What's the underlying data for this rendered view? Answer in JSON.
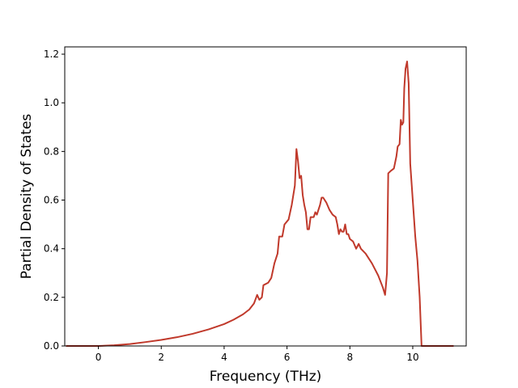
{
  "chart_data": {
    "type": "line",
    "title": "",
    "xlabel": "Frequency (THz)",
    "ylabel": "Partial Density of States",
    "xlim": [
      -1.07,
      11.7
    ],
    "ylim": [
      0.0,
      1.23
    ],
    "xticks": [
      0,
      2,
      4,
      6,
      8,
      10
    ],
    "yticks": [
      0.0,
      0.2,
      0.4,
      0.6,
      0.8,
      1.0,
      1.2
    ],
    "xtick_labels": [
      "0",
      "2",
      "4",
      "6",
      "8",
      "10"
    ],
    "ytick_labels": [
      "0.0",
      "0.2",
      "0.4",
      "0.6",
      "0.8",
      "1.0",
      "1.2"
    ],
    "grid": false,
    "series": [
      {
        "color": "#c0392b",
        "points": [
          [
            -1.03,
            0.0
          ],
          [
            0.0,
            0.0
          ],
          [
            0.5,
            0.003
          ],
          [
            1.0,
            0.008
          ],
          [
            1.5,
            0.016
          ],
          [
            2.0,
            0.025
          ],
          [
            2.5,
            0.036
          ],
          [
            3.0,
            0.05
          ],
          [
            3.5,
            0.068
          ],
          [
            4.0,
            0.09
          ],
          [
            4.3,
            0.108
          ],
          [
            4.6,
            0.13
          ],
          [
            4.8,
            0.15
          ],
          [
            4.95,
            0.175
          ],
          [
            5.05,
            0.21
          ],
          [
            5.12,
            0.19
          ],
          [
            5.2,
            0.2
          ],
          [
            5.25,
            0.25
          ],
          [
            5.4,
            0.26
          ],
          [
            5.5,
            0.28
          ],
          [
            5.6,
            0.34
          ],
          [
            5.7,
            0.38
          ],
          [
            5.75,
            0.45
          ],
          [
            5.85,
            0.45
          ],
          [
            5.92,
            0.5
          ],
          [
            6.05,
            0.52
          ],
          [
            6.15,
            0.58
          ],
          [
            6.25,
            0.66
          ],
          [
            6.3,
            0.81
          ],
          [
            6.35,
            0.76
          ],
          [
            6.4,
            0.69
          ],
          [
            6.45,
            0.7
          ],
          [
            6.5,
            0.62
          ],
          [
            6.55,
            0.58
          ],
          [
            6.6,
            0.55
          ],
          [
            6.65,
            0.48
          ],
          [
            6.7,
            0.48
          ],
          [
            6.75,
            0.53
          ],
          [
            6.85,
            0.53
          ],
          [
            6.9,
            0.55
          ],
          [
            6.95,
            0.54
          ],
          [
            7.05,
            0.58
          ],
          [
            7.1,
            0.61
          ],
          [
            7.15,
            0.61
          ],
          [
            7.25,
            0.59
          ],
          [
            7.35,
            0.56
          ],
          [
            7.45,
            0.54
          ],
          [
            7.55,
            0.53
          ],
          [
            7.6,
            0.5
          ],
          [
            7.65,
            0.46
          ],
          [
            7.7,
            0.48
          ],
          [
            7.75,
            0.47
          ],
          [
            7.8,
            0.47
          ],
          [
            7.85,
            0.5
          ],
          [
            7.9,
            0.46
          ],
          [
            7.95,
            0.46
          ],
          [
            8.0,
            0.44
          ],
          [
            8.1,
            0.43
          ],
          [
            8.2,
            0.4
          ],
          [
            8.28,
            0.42
          ],
          [
            8.35,
            0.4
          ],
          [
            8.5,
            0.38
          ],
          [
            8.7,
            0.34
          ],
          [
            8.9,
            0.29
          ],
          [
            9.05,
            0.24
          ],
          [
            9.12,
            0.21
          ],
          [
            9.18,
            0.3
          ],
          [
            9.22,
            0.71
          ],
          [
            9.3,
            0.72
          ],
          [
            9.4,
            0.73
          ],
          [
            9.48,
            0.78
          ],
          [
            9.52,
            0.82
          ],
          [
            9.58,
            0.83
          ],
          [
            9.62,
            0.93
          ],
          [
            9.66,
            0.91
          ],
          [
            9.7,
            0.92
          ],
          [
            9.73,
            1.06
          ],
          [
            9.77,
            1.14
          ],
          [
            9.82,
            1.17
          ],
          [
            9.87,
            1.08
          ],
          [
            9.92,
            0.75
          ],
          [
            10.0,
            0.6
          ],
          [
            10.08,
            0.45
          ],
          [
            10.15,
            0.35
          ],
          [
            10.22,
            0.2
          ],
          [
            10.28,
            0.0
          ],
          [
            11.3,
            0.0
          ]
        ]
      }
    ]
  }
}
